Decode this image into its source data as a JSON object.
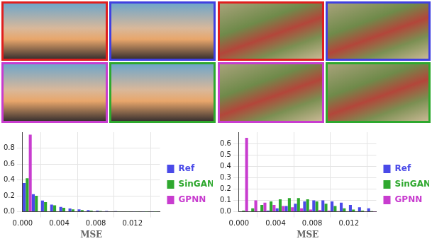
{
  "chart_data": [
    {
      "type": "bar",
      "x_label": "MSE",
      "legend": "right",
      "grid": true,
      "bins": [
        0,
        0.001,
        0.002,
        0.003,
        0.004,
        0.005,
        0.006,
        0.007,
        0.008,
        0.009,
        0.01,
        0.011,
        0.012,
        0.013,
        0.014,
        0.015
      ],
      "xlim": [
        0,
        0.015
      ],
      "xticks": [
        {
          "value": 0,
          "label": "0.000"
        },
        {
          "value": 0.004,
          "label": "0.004"
        },
        {
          "value": 0.008,
          "label": "0.008"
        },
        {
          "value": 0.012,
          "label": "0.012"
        }
      ],
      "ylim": [
        0,
        1.0
      ],
      "yticks": [
        {
          "value": 0,
          "label": "0.0"
        },
        0.2,
        0.4,
        0.6,
        0.8
      ],
      "series": [
        {
          "name": "Ref",
          "color": "#4a4ae8",
          "values": [
            0.36,
            0.22,
            0.14,
            0.09,
            0.06,
            0.04,
            0.03,
            0.02,
            0.015,
            0.01,
            0.008,
            0.005,
            0.004,
            0.003,
            0.002
          ]
        },
        {
          "name": "SinGAN",
          "color": "#2ea82e",
          "values": [
            0.42,
            0.2,
            0.12,
            0.08,
            0.05,
            0.03,
            0.02,
            0.015,
            0.01,
            0.006,
            0.004,
            0.003,
            0.002,
            0.001,
            0.001
          ]
        },
        {
          "name": "GPNN",
          "color": "#c83ccf",
          "values": [
            0.97,
            0,
            0,
            0,
            0,
            0,
            0,
            0,
            0,
            0,
            0,
            0,
            0,
            0,
            0
          ]
        }
      ]
    },
    {
      "type": "bar",
      "x_label": "MSE",
      "legend": "right",
      "grid": true,
      "bins": [
        0,
        0.001,
        0.002,
        0.003,
        0.004,
        0.005,
        0.006,
        0.007,
        0.008,
        0.009,
        0.01,
        0.011,
        0.012,
        0.013,
        0.014,
        0.015
      ],
      "xlim": [
        0,
        0.015
      ],
      "xticks": [
        {
          "value": 0,
          "label": "0.000"
        },
        {
          "value": 0.004,
          "label": "0.004"
        },
        {
          "value": 0.008,
          "label": "0.008"
        },
        {
          "value": 0.012,
          "label": "0.012"
        }
      ],
      "ylim": [
        0,
        0.7
      ],
      "yticks": [
        {
          "value": 0,
          "label": "0.0"
        },
        0.1,
        0.2,
        0.3,
        0.4,
        0.5,
        0.6
      ],
      "series": [
        {
          "name": "Ref",
          "color": "#4a4ae8",
          "values": [
            0,
            0,
            0,
            0.01,
            0.03,
            0.05,
            0.07,
            0.09,
            0.1,
            0.1,
            0.09,
            0.08,
            0.06,
            0.04,
            0.03
          ]
        },
        {
          "name": "SinGAN",
          "color": "#2ea82e",
          "values": [
            0.01,
            0.03,
            0.06,
            0.09,
            0.11,
            0.12,
            0.12,
            0.11,
            0.09,
            0.07,
            0.05,
            0.03,
            0.02,
            0.01,
            0.005
          ]
        },
        {
          "name": "GPNN",
          "color": "#c83ccf",
          "values": [
            0.65,
            0.1,
            0.08,
            0.06,
            0.05,
            0.04,
            0.03,
            0.02,
            0.015,
            0.01,
            0.005,
            0.004,
            0.003,
            0.002,
            0.001
          ]
        }
      ]
    }
  ]
}
